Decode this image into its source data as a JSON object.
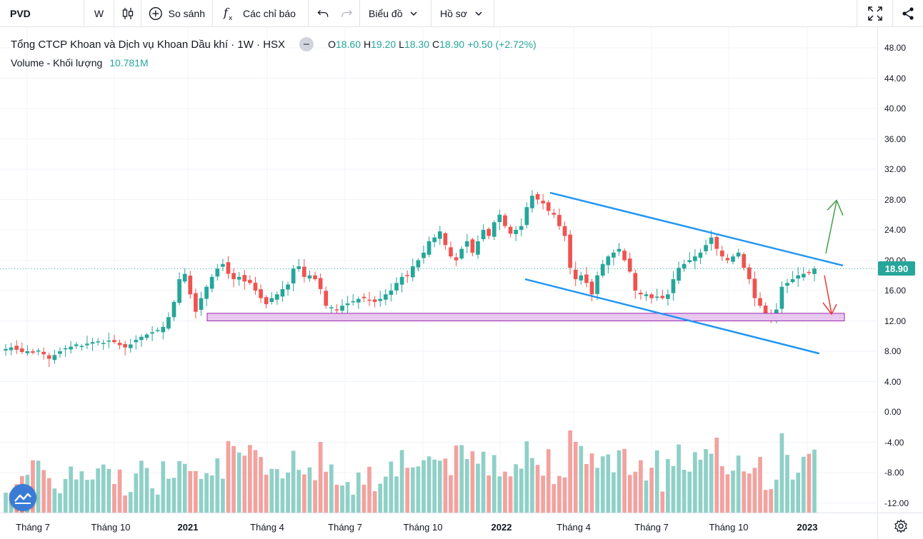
{
  "toolbar": {
    "symbol": "PVD",
    "interval": "W",
    "compare_label": "So sánh",
    "indicators_label": "Các chỉ báo",
    "chart_menu_label": "Biểu đồ",
    "profile_label": "Hồ sơ"
  },
  "legend": {
    "title": "Tổng CTCP Khoan và Dịch vụ Khoan Dầu khí · 1W · HSX",
    "open_label": "O",
    "open_value": "18.60",
    "high_label": "H",
    "high_value": "19.20",
    "low_label": "L",
    "low_value": "18.30",
    "close_label": "C",
    "close_value": "18.90",
    "change_value": "+0.50 (+2.72%)",
    "volume_label": "Volume - Khối lượng",
    "volume_value": "10.781M"
  },
  "price_scale": {
    "ticks": [
      "48.00",
      "44.00",
      "40.00",
      "36.00",
      "32.00",
      "28.00",
      "24.00",
      "20.00",
      "16.00",
      "12.00",
      "8.00",
      "4.00",
      "0.00",
      "-4.00",
      "-8.00",
      "-12.00"
    ],
    "last_price": "18.90"
  },
  "time_scale": {
    "ticks": [
      {
        "label": "Tháng 7",
        "bold": false
      },
      {
        "label": "Tháng 10",
        "bold": false
      },
      {
        "label": "2021",
        "bold": true
      },
      {
        "label": "Tháng 4",
        "bold": false
      },
      {
        "label": "Tháng 7",
        "bold": false
      },
      {
        "label": "Tháng 10",
        "bold": false
      },
      {
        "label": "2022",
        "bold": true
      },
      {
        "label": "Tháng 4",
        "bold": false
      },
      {
        "label": "Tháng 7",
        "bold": false
      },
      {
        "label": "Tháng 10",
        "bold": false
      },
      {
        "label": "2023",
        "bold": true
      }
    ]
  },
  "colors": {
    "up": "#26a69a",
    "down": "#ef5350",
    "vol_up": "#8fd0c7",
    "vol_down": "#f2a29f",
    "trendline": "#2196f3",
    "zone_fill": "#e8c8ee",
    "zone_border": "#9c27b0",
    "arrow_up": "#43a047",
    "arrow_down": "#e53935"
  },
  "chart_data": {
    "type": "candlestick",
    "title": "Tổng CTCP Khoan và Dịch vụ Khoan Dầu khí · 1W · HSX",
    "interval": "1W",
    "ylim": [
      -14,
      52
    ],
    "last_close": 18.9,
    "close_series": [
      8.3,
      8.5,
      8.2,
      7.9,
      8.0,
      7.8,
      8.1,
      7.6,
      7.0,
      7.5,
      8.0,
      8.4,
      8.6,
      8.9,
      8.7,
      9.0,
      9.2,
      9.3,
      9.1,
      9.4,
      9.2,
      8.8,
      8.5,
      8.9,
      9.5,
      9.9,
      10.2,
      10.5,
      10.8,
      11.2,
      12.5,
      14.5,
      17.5,
      18.2,
      15.5,
      13.2,
      15.0,
      16.5,
      17.8,
      18.9,
      19.5,
      18.2,
      17.5,
      17.8,
      17.2,
      17.0,
      16.0,
      15.0,
      14.2,
      15.0,
      15.5,
      16.2,
      16.8,
      18.9,
      19.2,
      17.8,
      18.0,
      17.5,
      16.2,
      14.0,
      13.8,
      13.5,
      14.0,
      14.3,
      14.6,
      14.9,
      15.0,
      14.7,
      14.5,
      14.9,
      15.5,
      16.0,
      17.0,
      17.8,
      18.0,
      19.2,
      20.0,
      21.0,
      22.5,
      23.0,
      23.8,
      22.0,
      20.5,
      20.0,
      21.5,
      22.5,
      21.0,
      22.5,
      24.0,
      23.2,
      25.0,
      26.0,
      24.5,
      23.5,
      24.0,
      24.5,
      27.0,
      28.5,
      28.0,
      27.5,
      26.5,
      26.0,
      24.5,
      23.2,
      19.0,
      17.5,
      18.0,
      17.0,
      15.5,
      18.0,
      19.5,
      20.5,
      21.0,
      21.5,
      20.0,
      18.5,
      16.0,
      15.5,
      15.5,
      15.0,
      15.2,
      15.0,
      15.5,
      17.5,
      19.0,
      19.5,
      20.0,
      20.5,
      21.0,
      22.0,
      23.0,
      21.5,
      20.5,
      20.0,
      20.5,
      21.0,
      19.0,
      17.5,
      15.0,
      14.0,
      13.0,
      12.5,
      13.5,
      16.5,
      17.0,
      17.5,
      18.0,
      18.2,
      18.4,
      18.9
    ],
    "volume_note": "Weekly volume histogram shown in lower area, colored by candle direction"
  }
}
